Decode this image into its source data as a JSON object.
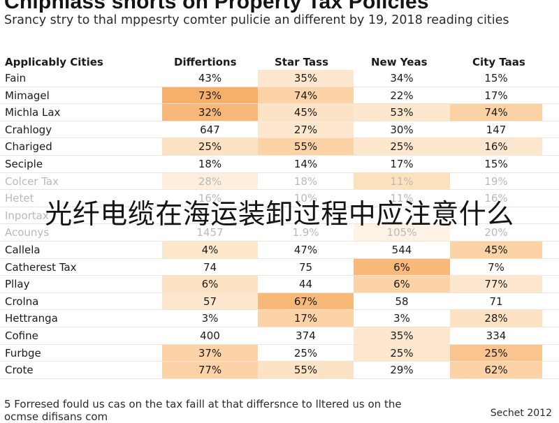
{
  "title": "Chipniass shorts on Property Tax Policies",
  "subtitle": "Srancy stry to thal mppesrty comter pulicie an different by 19, 2018 reading cities",
  "columns": [
    "Applicably Cities",
    "Differtions",
    "Star Tass",
    "New Yeas",
    "City Taas"
  ],
  "rows": [
    {
      "cells": [
        "Fain",
        "43%",
        "35%",
        "34%",
        "15%"
      ],
      "bg": [
        "#ffffff",
        "#ffffff",
        "#fde8cf",
        "#ffffff",
        "#ffffff"
      ]
    },
    {
      "cells": [
        "Mimagel",
        "73%",
        "74%",
        "22%",
        "17%"
      ],
      "bg": [
        "#ffffff",
        "#f7b06a",
        "#fbd3a6",
        "#ffffff",
        "#ffffff"
      ]
    },
    {
      "cells": [
        "Michla Lax",
        "32%",
        "45%",
        "53%",
        "74%"
      ],
      "bg": [
        "#ffffff",
        "#f8b878",
        "#fde3c6",
        "#fde7cd",
        "#fbd2a4"
      ]
    },
    {
      "cells": [
        "Crahlogy",
        "647",
        "27%",
        "30%",
        "147"
      ],
      "bg": [
        "#ffffff",
        "#ffffff",
        "#fde8cf",
        "#ffffff",
        "#ffffff"
      ]
    },
    {
      "cells": [
        "Chariged",
        "25%",
        "55%",
        "25%",
        "16%"
      ],
      "bg": [
        "#ffffff",
        "#fde2c3",
        "#fbd3a6",
        "#fde8cf",
        "#fde8cf"
      ]
    },
    {
      "cells": [
        "Seciple",
        "18%",
        "14%",
        "17%",
        "15%"
      ],
      "bg": [
        "#ffffff",
        "#ffffff",
        "#ffffff",
        "#ffffff",
        "#ffffff"
      ]
    },
    {
      "cells": [
        "Colcer Tax",
        "28%",
        "18%",
        "11%",
        "19%"
      ],
      "bg": [
        "#ffffff",
        "#fdeedd",
        "#ffffff",
        "#fde1bd",
        "#ffffff"
      ],
      "faded": true
    },
    {
      "cells": [
        "Hetet",
        "16%",
        "10%",
        "11%",
        "16%"
      ],
      "bg": [
        "#ffffff",
        "#ffffff",
        "#ffffff",
        "#ffffff",
        "#ffffff"
      ],
      "faded": true
    },
    {
      "cells": [
        "Inportax",
        "",
        "",
        "",
        ""
      ],
      "bg": [
        "#ffffff",
        "#ffffff",
        "#ffffff",
        "#ffffff",
        "#ffffff"
      ],
      "faded": true
    },
    {
      "cells": [
        "Acounys",
        "1457",
        "1.9%",
        "105%",
        "20%"
      ],
      "bg": [
        "#ffffff",
        "#ffffff",
        "#ffffff",
        "#fdf2e4",
        "#ffffff"
      ],
      "faded": true
    },
    {
      "cells": [
        "Callela",
        "4%",
        "47%",
        "544",
        "45%"
      ],
      "bg": [
        "#ffffff",
        "#fde7cd",
        "#ffffff",
        "#ffffff",
        "#fbd3a6"
      ]
    },
    {
      "cells": [
        "Catherest Tax",
        "74",
        "75",
        "6%",
        "7%"
      ],
      "bg": [
        "#ffffff",
        "#ffffff",
        "#ffffff",
        "#f9b97a",
        "#ffffff"
      ]
    },
    {
      "cells": [
        "Pllay",
        "6%",
        "44",
        "6%",
        "77%"
      ],
      "bg": [
        "#ffffff",
        "#fde2c3",
        "#ffffff",
        "#fbd3a6",
        "#fde8cf"
      ]
    },
    {
      "cells": [
        "Crolna",
        "57",
        "67%",
        "58",
        "71"
      ],
      "bg": [
        "#ffffff",
        "#fde8cf",
        "#f8b878",
        "#ffffff",
        "#ffffff"
      ]
    },
    {
      "cells": [
        "Hettranga",
        "3%",
        "17%",
        "3%",
        "28%"
      ],
      "bg": [
        "#ffffff",
        "#ffffff",
        "#fbd3a6",
        "#ffffff",
        "#fde2c3"
      ]
    },
    {
      "cells": [
        "Cofine",
        "400",
        "374",
        "35%",
        "334"
      ],
      "bg": [
        "#ffffff",
        "#ffffff",
        "#ffffff",
        "#fde8cf",
        "#ffffff"
      ]
    },
    {
      "cells": [
        "Furbge",
        "37%",
        "25%",
        "25%",
        "25%"
      ],
      "bg": [
        "#ffffff",
        "#fbd3a6",
        "#ffffff",
        "#fde8cf",
        "#f9c48e"
      ]
    },
    {
      "cells": [
        "Crote",
        "77%",
        "55%",
        "29%",
        "62%"
      ],
      "bg": [
        "#ffffff",
        "#fbd3a6",
        "#fde3c6",
        "#ffffff",
        "#fbd3a6"
      ]
    }
  ],
  "overlay_text": "光纤电缆在海运装卸过程中应注意什么",
  "footnote": "5 Forresed fould us cas on the tax faill at that differsnce to lltered us on the ocmse difisans com",
  "source": "Sechet 2012"
}
